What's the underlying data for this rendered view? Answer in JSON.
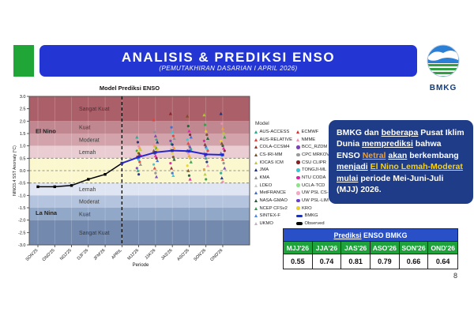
{
  "slide": {
    "page_number": "8"
  },
  "header": {
    "title": "ANALISIS & PREDIKSI ENSO",
    "subtitle": "(PEMUTAKHIRAN DASARIAN I APRIL 2026)",
    "bar_color": "#2336d4",
    "accent_color": "#1fa637"
  },
  "logo": {
    "text": "BMKG"
  },
  "chart_data": {
    "type": "line",
    "title": "Model Prediksi ENSO",
    "xlabel": "Periode",
    "ylabel": "NINO3.4 SST Anomaly (°C)",
    "ylim": [
      -3,
      3
    ],
    "x_categories": [
      "SON'25",
      "OND'25",
      "NDJ'25",
      "DJF'26",
      "JFM'26",
      "APRIL",
      "MJJ'26",
      "JJA'26",
      "JAS'26",
      "ASO'26",
      "SON'26",
      "OND'26"
    ],
    "yticks": [
      3.0,
      2.5,
      2.0,
      1.5,
      1.0,
      0.5,
      0.0,
      -0.5,
      -1.0,
      -1.5,
      -2.0,
      -2.5,
      -3.0
    ],
    "vline_at": "APRIL",
    "dashed_hlines": [
      0.5,
      0.0,
      -0.5
    ],
    "bands": [
      {
        "from": 2.0,
        "to": 3.0,
        "color": "#ab5f68",
        "label": "Sangat Kuat"
      },
      {
        "from": 1.5,
        "to": 2.0,
        "color": "#c08790",
        "label": "Kuat"
      },
      {
        "from": 1.0,
        "to": 1.5,
        "color": "#d3a3ab",
        "label": "Moderat"
      },
      {
        "from": 0.5,
        "to": 1.0,
        "color": "#e9cdd2",
        "label": "Lemah"
      },
      {
        "from": -0.5,
        "to": 0.5,
        "color": "#fbf8d0",
        "label": ""
      },
      {
        "from": -1.0,
        "to": -0.5,
        "color": "#dfe5f2",
        "label": "Lemah"
      },
      {
        "from": -1.5,
        "to": -1.0,
        "color": "#b4c4de",
        "label": "Moderat"
      },
      {
        "from": -2.0,
        "to": -1.5,
        "color": "#92a8c8",
        "label": "Kuat"
      },
      {
        "from": -3.0,
        "to": -2.0,
        "color": "#7389ae",
        "label": "Sangat Kuat"
      }
    ],
    "side_labels": [
      {
        "text": "El Nino",
        "v": 1.6
      },
      {
        "text": "La Nina",
        "v": -1.7
      }
    ],
    "series": [
      {
        "name": "Observed",
        "color": "#000000",
        "start_idx": 0,
        "values": [
          -0.65,
          -0.65,
          -0.6,
          -0.35,
          -0.15,
          0.3
        ]
      },
      {
        "name": "BMKG",
        "color": "#2626cc",
        "start_idx": 5,
        "values": [
          0.3,
          0.55,
          0.74,
          0.81,
          0.79,
          0.66,
          0.64
        ]
      }
    ],
    "model_spread": {
      "start_idx": 6,
      "columns": [
        [
          1.35,
          1.15,
          1.0,
          0.9,
          0.85,
          0.8,
          0.75,
          0.7,
          0.65,
          0.6,
          0.55,
          0.5,
          0.45,
          0.35,
          0.25,
          0.1,
          0.0,
          -0.15
        ],
        [
          2.05,
          1.55,
          1.4,
          1.25,
          1.15,
          1.05,
          1.0,
          0.95,
          0.9,
          0.85,
          0.8,
          0.7,
          0.6,
          0.5,
          0.4,
          0.25,
          0.1,
          -0.1,
          -0.25
        ],
        [
          2.3,
          1.75,
          1.55,
          1.4,
          1.3,
          1.2,
          1.1,
          1.05,
          0.95,
          0.9,
          0.85,
          0.8,
          0.7,
          0.55,
          0.45,
          0.3,
          0.1,
          -0.1,
          -0.2
        ],
        [
          2.2,
          1.8,
          1.6,
          1.45,
          1.35,
          1.25,
          1.1,
          1.0,
          0.95,
          0.85,
          0.8,
          0.7,
          0.6,
          0.5,
          0.35,
          0.2,
          0.0,
          -0.2,
          -0.35
        ],
        [
          2.25,
          1.85,
          1.6,
          1.45,
          1.3,
          1.2,
          1.05,
          0.95,
          0.9,
          0.8,
          0.7,
          0.6,
          0.5,
          0.35,
          0.2,
          0.05,
          -0.15,
          -0.35
        ],
        [
          2.3,
          1.9,
          1.7,
          1.5,
          1.35,
          1.2,
          1.1,
          1.0,
          0.9,
          0.8,
          0.7,
          0.6,
          0.45,
          0.3,
          0.1,
          -0.1,
          -0.3,
          -0.45
        ]
      ]
    }
  },
  "legend": {
    "title": "Model",
    "col1": [
      {
        "label": "AUS-ACCESS",
        "color": "#2ca58d",
        "shape": "tri"
      },
      {
        "label": "AUS-RELATIVE",
        "color": "#e0413c",
        "shape": "tri"
      },
      {
        "label": "COLA-CCSM4",
        "color": "#9e2a2b",
        "shape": "tri"
      },
      {
        "label": "CS-IRI-MM",
        "color": "#7a4b22",
        "shape": "tri"
      },
      {
        "label": "IOCAS ICM",
        "color": "#b5cc34",
        "shape": "tri"
      },
      {
        "label": "JMA",
        "color": "#1b2f77",
        "shape": "tri"
      },
      {
        "label": "KMA",
        "color": "#8e8e8e",
        "shape": "tri"
      },
      {
        "label": "LDEO",
        "color": "#c9c9c9",
        "shape": "tri"
      },
      {
        "label": "MetFRANCE",
        "color": "#3a6bd6",
        "shape": "tri"
      },
      {
        "label": "NASA-GMAO",
        "color": "#1d5c33",
        "shape": "tri"
      },
      {
        "label": "NCEP CFSv2",
        "color": "#2e9e46",
        "shape": "tri"
      },
      {
        "label": "SINTEX-F",
        "color": "#4f86e0",
        "shape": "tri"
      },
      {
        "label": "UKMO",
        "color": "#b9b9b9",
        "shape": "tri"
      }
    ],
    "col2": [
      {
        "label": "ECMWF",
        "color": "#d92b2b",
        "shape": "tri"
      },
      {
        "label": "NMME",
        "color": "#f08bb5",
        "shape": "tri"
      },
      {
        "label": "BCC_RZDM",
        "color": "#7c3fb5",
        "shape": "dot"
      },
      {
        "label": "CPC MRKOV",
        "color": "#9a9a9a",
        "shape": "dot"
      },
      {
        "label": "CSU CLIPR",
        "color": "#8a1f24",
        "shape": "dot"
      },
      {
        "label": "TONGJI-ML",
        "color": "#39c7d4",
        "shape": "dot"
      },
      {
        "label": "NTU CODA",
        "color": "#e01fa7",
        "shape": "dot"
      },
      {
        "label": "UCLA-TCD",
        "color": "#8fe08f",
        "shape": "dot"
      },
      {
        "label": "UW PSL CS-LIM",
        "color": "#f2a9c4",
        "shape": "dot"
      },
      {
        "label": "UW PSL-LIM",
        "color": "#6a3fd0",
        "shape": "dot"
      },
      {
        "label": "KRO",
        "color": "#e8d22b",
        "shape": "dot"
      },
      {
        "label": "BMKG",
        "color": "#1b2fb0",
        "shape": "dash"
      },
      {
        "label": "Observed",
        "color": "#000000",
        "shape": "dash"
      }
    ]
  },
  "info_box": {
    "bg": "#1e3c87",
    "segments": [
      {
        "t": "BMKG dan "
      },
      {
        "t": "beberapa",
        "u": true
      },
      {
        "t": " Pusat Iklim Dunia "
      },
      {
        "t": "memprediksi",
        "u": true
      },
      {
        "t": " bahwa ENSO "
      },
      {
        "t": "Netral",
        "u": true,
        "c": "#f0a030"
      },
      {
        "t": " "
      },
      {
        "t": "akan",
        "u": true
      },
      {
        "t": " berkembang "
      },
      {
        "t": "menjadi",
        "u": true
      },
      {
        "t": " "
      },
      {
        "t": "El Nino Lemah-Moderat",
        "u": true,
        "c": "#ffd400"
      },
      {
        "t": " "
      },
      {
        "t": "mulai",
        "u": true
      },
      {
        "t": " periode Mei-Juni-Juli (MJJ) 2026."
      }
    ]
  },
  "table": {
    "title_segments": [
      {
        "t": "Prediksi",
        "u": true
      },
      {
        "t": " ENSO BMKG"
      }
    ],
    "title_bg": "#2a50c8",
    "header_bg": "#1fa13c",
    "columns": [
      "MJJ'26",
      "JJA'26",
      "JAS'26",
      "ASO'26",
      "SON'26",
      "OND'26"
    ],
    "values": [
      "0.55",
      "0.74",
      "0.81",
      "0.79",
      "0.66",
      "0.64"
    ]
  }
}
